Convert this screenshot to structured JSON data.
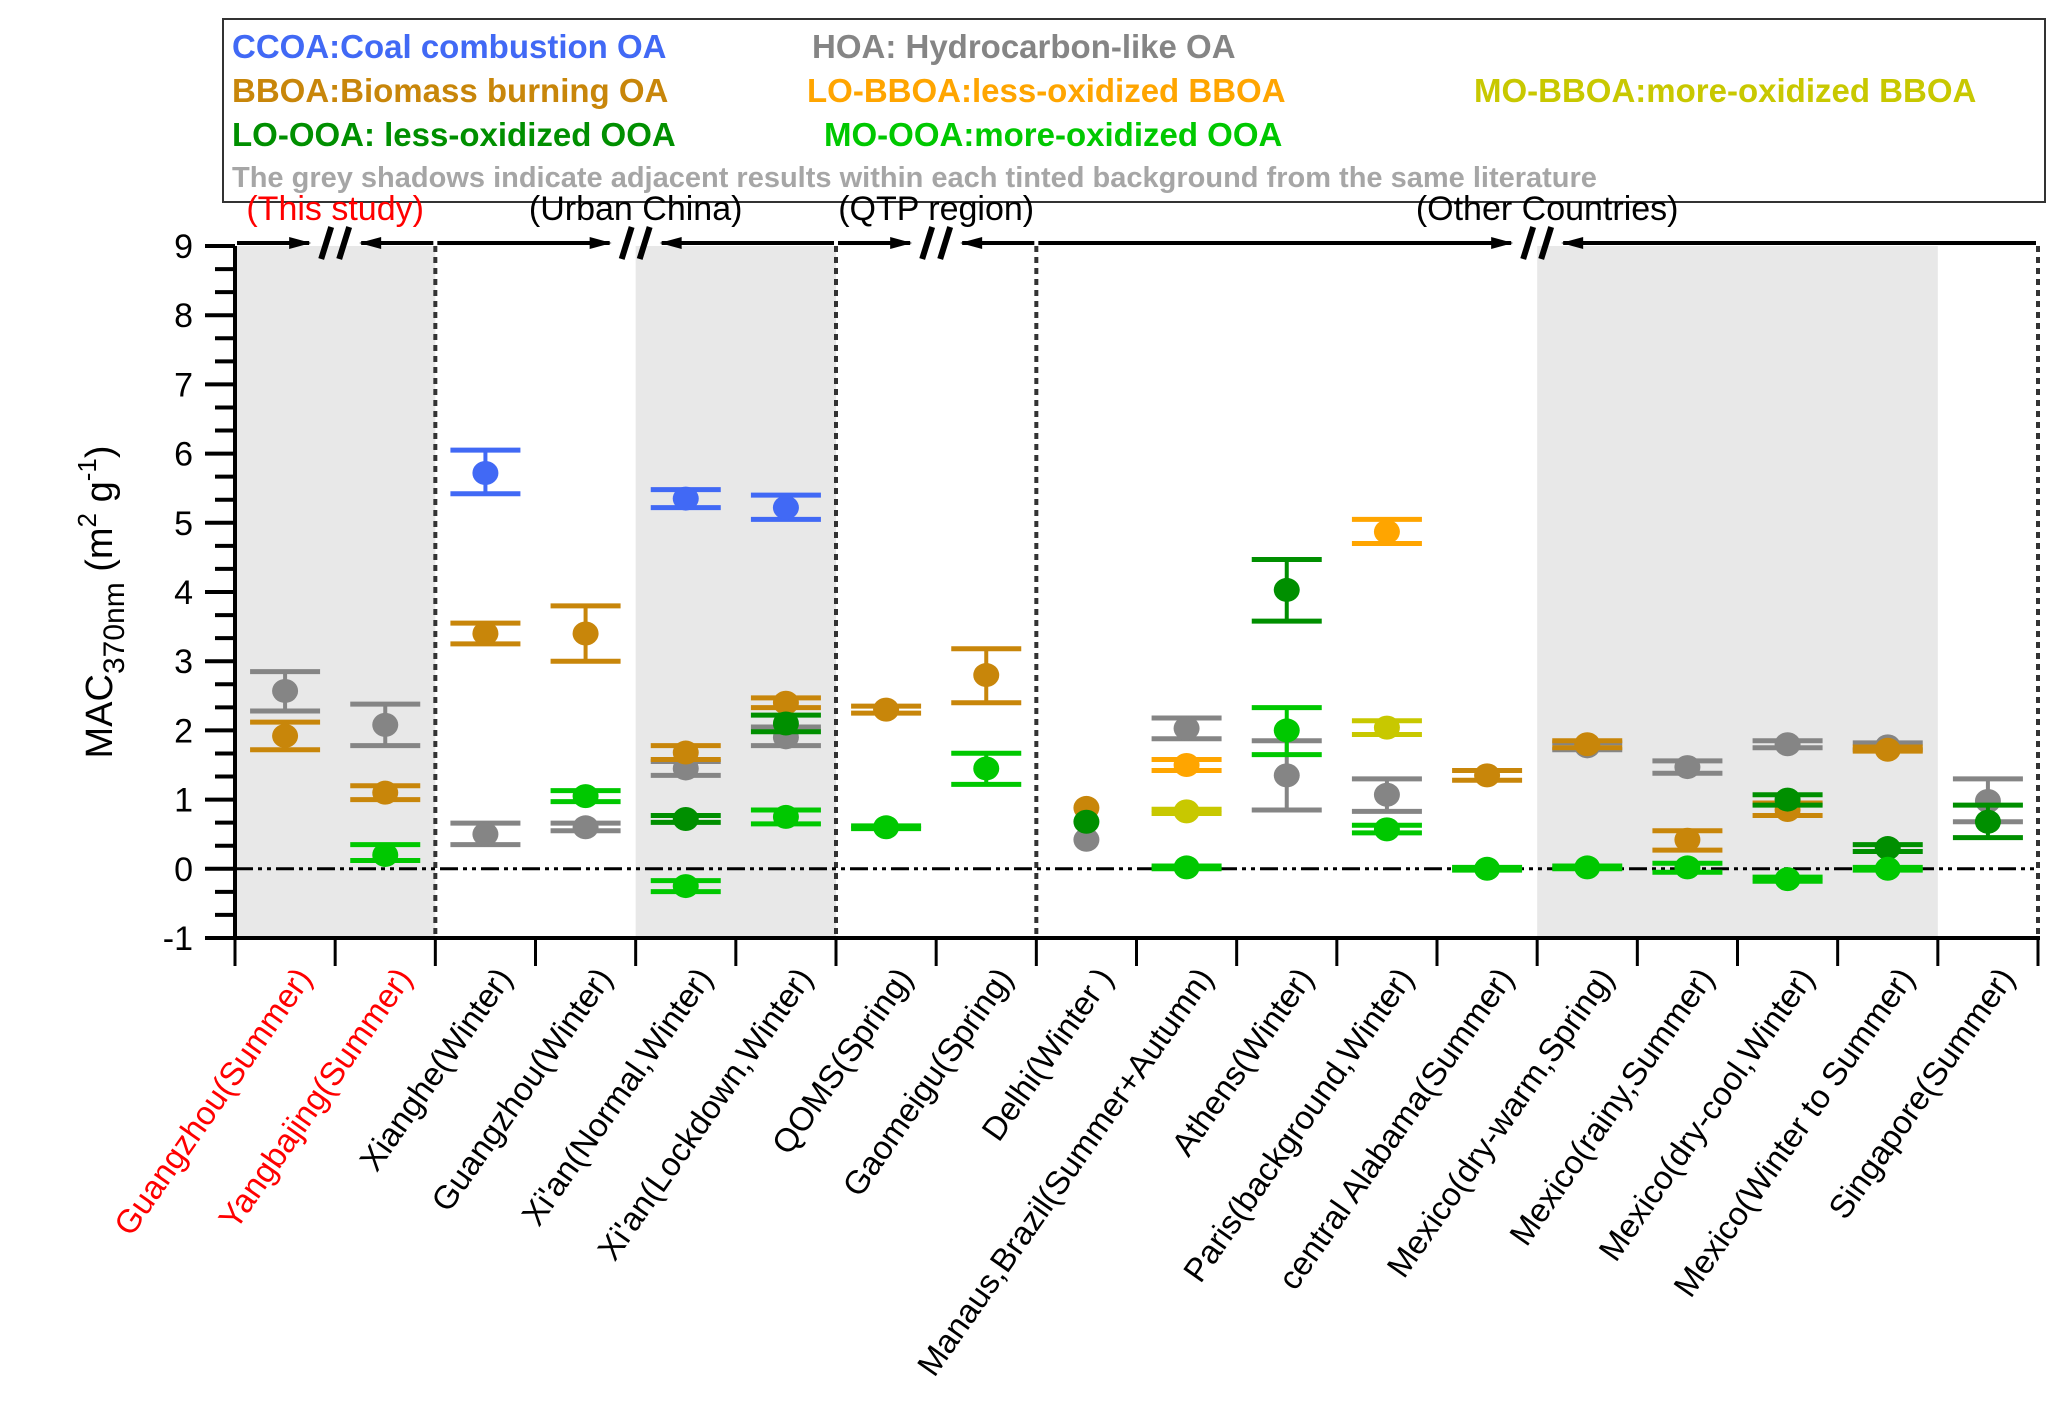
{
  "chart_data": {
    "type": "scatter",
    "title": "",
    "ylabel": "MAC370nm (m2 g-1)",
    "ylabel_parts": {
      "main": "MAC",
      "sub": "370nm",
      "unit_open": " (m",
      "sup1": "2",
      "mid": " g",
      "sup2": "-1",
      "unit_close": ")"
    },
    "ylim": [
      -1,
      9
    ],
    "yticks": [
      -1,
      0,
      1,
      2,
      3,
      4,
      5,
      6,
      7,
      8,
      9
    ],
    "reference_line": 0,
    "categories": [
      "Guangzhou(Summer)",
      "Yangbajing(Summer)",
      "Xianghe(Winter)",
      "Guangzhou(Winter)",
      "Xi'an(Normal,Winter)",
      "Xi'an(Lockdown,Winter)",
      "QOMS(Spring)",
      "Gaomeigu(Spring)",
      "Delhi(Winter )",
      "Manaus,Brazil(Summer+Autumn)",
      "Athens(Winter)",
      "Paris(background,Winter)",
      "central Alabama(Summer)",
      "Mexico(dry-warm,Spring)",
      "Mexico(rainy,Summer)",
      "Mexico(dry-cool,Winter)",
      "Mexico(Winter to Summer)",
      "Singapore(Summer)"
    ],
    "highlight_categories": [
      0,
      1
    ],
    "highlight_color": "#ff0000",
    "groups": [
      {
        "label": "(This study)",
        "color": "#ff0000",
        "from": 0,
        "to": 1,
        "break": true
      },
      {
        "label": "(Urban China)",
        "color": "#000000",
        "from": 2,
        "to": 5,
        "break": true
      },
      {
        "label": "(QTP region)",
        "color": "#000000",
        "from": 6,
        "to": 7,
        "break": true
      },
      {
        "label": "(Other Countries)",
        "color": "#000000",
        "from": 8,
        "to": 17,
        "break": true,
        "break_at": 13
      }
    ],
    "shaded_ranges": [
      [
        0,
        1
      ],
      [
        4,
        5
      ],
      [
        13,
        16
      ]
    ],
    "series": [
      {
        "name": "CCOA",
        "color": "#4169f5",
        "points": [
          {
            "cat": 2,
            "y": 5.72,
            "lo": 5.42,
            "hi": 6.05
          },
          {
            "cat": 4,
            "y": 5.35,
            "lo": 5.22,
            "hi": 5.48
          },
          {
            "cat": 5,
            "y": 5.22,
            "lo": 5.05,
            "hi": 5.4
          }
        ]
      },
      {
        "name": "HOA",
        "color": "#858585",
        "points": [
          {
            "cat": 0,
            "y": 2.57,
            "lo": 2.28,
            "hi": 2.85
          },
          {
            "cat": 1,
            "y": 2.08,
            "lo": 1.78,
            "hi": 2.38
          },
          {
            "cat": 2,
            "y": 0.5,
            "lo": 0.35,
            "hi": 0.66
          },
          {
            "cat": 3,
            "y": 0.6,
            "lo": 0.55,
            "hi": 0.66
          },
          {
            "cat": 4,
            "y": 1.45,
            "lo": 1.35,
            "hi": 1.55
          },
          {
            "cat": 5,
            "y": 1.9,
            "lo": 1.78,
            "hi": 2.05
          },
          {
            "cat": 8,
            "y": 0.42,
            "lo": 0.42,
            "hi": 0.42
          },
          {
            "cat": 9,
            "y": 2.03,
            "lo": 1.88,
            "hi": 2.18
          },
          {
            "cat": 10,
            "y": 1.35,
            "lo": 0.85,
            "hi": 1.85
          },
          {
            "cat": 11,
            "y": 1.07,
            "lo": 0.83,
            "hi": 1.3
          },
          {
            "cat": 13,
            "y": 1.77,
            "lo": 1.72,
            "hi": 1.82
          },
          {
            "cat": 14,
            "y": 1.47,
            "lo": 1.38,
            "hi": 1.56
          },
          {
            "cat": 15,
            "y": 1.8,
            "lo": 1.75,
            "hi": 1.85
          },
          {
            "cat": 16,
            "y": 1.77,
            "lo": 1.72,
            "hi": 1.82
          },
          {
            "cat": 17,
            "y": 0.98,
            "lo": 0.68,
            "hi": 1.3
          }
        ]
      },
      {
        "name": "BBOA",
        "color": "#c8860a",
        "points": [
          {
            "cat": 0,
            "y": 1.92,
            "lo": 1.72,
            "hi": 2.12
          },
          {
            "cat": 1,
            "y": 1.1,
            "lo": 1.0,
            "hi": 1.2
          },
          {
            "cat": 2,
            "y": 3.4,
            "lo": 3.25,
            "hi": 3.55
          },
          {
            "cat": 3,
            "y": 3.4,
            "lo": 3.0,
            "hi": 3.8
          },
          {
            "cat": 4,
            "y": 1.68,
            "lo": 1.58,
            "hi": 1.78
          },
          {
            "cat": 5,
            "y": 2.4,
            "lo": 2.33,
            "hi": 2.47
          },
          {
            "cat": 6,
            "y": 2.3,
            "lo": 2.25,
            "hi": 2.35
          },
          {
            "cat": 7,
            "y": 2.8,
            "lo": 2.4,
            "hi": 3.18
          },
          {
            "cat": 8,
            "y": 0.88,
            "lo": 0.88,
            "hi": 0.88
          },
          {
            "cat": 12,
            "y": 1.35,
            "lo": 1.28,
            "hi": 1.42
          },
          {
            "cat": 13,
            "y": 1.8,
            "lo": 1.75,
            "hi": 1.85
          },
          {
            "cat": 14,
            "y": 0.42,
            "lo": 0.27,
            "hi": 0.55
          },
          {
            "cat": 15,
            "y": 0.85,
            "lo": 0.77,
            "hi": 0.95
          },
          {
            "cat": 16,
            "y": 1.72,
            "lo": 1.7,
            "hi": 1.76
          }
        ]
      },
      {
        "name": "LO-BBOA",
        "color": "#ffa500",
        "points": [
          {
            "cat": 9,
            "y": 1.5,
            "lo": 1.42,
            "hi": 1.58
          },
          {
            "cat": 11,
            "y": 4.87,
            "lo": 4.7,
            "hi": 5.05
          }
        ]
      },
      {
        "name": "MO-BBOA",
        "color": "#c8c800",
        "points": [
          {
            "cat": 9,
            "y": 0.83,
            "lo": 0.8,
            "hi": 0.86
          },
          {
            "cat": 11,
            "y": 2.04,
            "lo": 1.94,
            "hi": 2.14
          }
        ]
      },
      {
        "name": "LO-OOA",
        "color": "#008f00",
        "points": [
          {
            "cat": 4,
            "y": 0.72,
            "lo": 0.67,
            "hi": 0.77
          },
          {
            "cat": 5,
            "y": 2.1,
            "lo": 1.98,
            "hi": 2.22
          },
          {
            "cat": 8,
            "y": 0.68,
            "lo": 0.68,
            "hi": 0.68
          },
          {
            "cat": 10,
            "y": 4.03,
            "lo": 3.58,
            "hi": 4.47
          },
          {
            "cat": 15,
            "y": 1.0,
            "lo": 0.92,
            "hi": 1.07
          },
          {
            "cat": 16,
            "y": 0.3,
            "lo": 0.25,
            "hi": 0.35
          },
          {
            "cat": 17,
            "y": 0.68,
            "lo": 0.45,
            "hi": 0.92
          }
        ]
      },
      {
        "name": "MO-OOA",
        "color": "#00c800",
        "points": [
          {
            "cat": 1,
            "y": 0.2,
            "lo": 0.12,
            "hi": 0.35
          },
          {
            "cat": 3,
            "y": 1.05,
            "lo": 0.97,
            "hi": 1.13
          },
          {
            "cat": 4,
            "y": -0.25,
            "lo": -0.33,
            "hi": -0.17
          },
          {
            "cat": 5,
            "y": 0.75,
            "lo": 0.65,
            "hi": 0.85
          },
          {
            "cat": 6,
            "y": 0.6,
            "lo": 0.58,
            "hi": 0.62
          },
          {
            "cat": 7,
            "y": 1.45,
            "lo": 1.22,
            "hi": 1.67
          },
          {
            "cat": 9,
            "y": 0.02,
            "lo": 0.0,
            "hi": 0.04
          },
          {
            "cat": 10,
            "y": 2.0,
            "lo": 1.65,
            "hi": 2.33
          },
          {
            "cat": 11,
            "y": 0.57,
            "lo": 0.52,
            "hi": 0.63
          },
          {
            "cat": 12,
            "y": 0.0,
            "lo": -0.02,
            "hi": 0.02
          },
          {
            "cat": 13,
            "y": 0.02,
            "lo": 0.0,
            "hi": 0.04
          },
          {
            "cat": 14,
            "y": 0.02,
            "lo": -0.05,
            "hi": 0.08
          },
          {
            "cat": 15,
            "y": -0.15,
            "lo": -0.18,
            "hi": -0.12
          },
          {
            "cat": 16,
            "y": 0.0,
            "lo": -0.02,
            "hi": 0.02
          }
        ]
      }
    ],
    "legend": {
      "placement": "top",
      "rows": [
        [
          {
            "text": "CCOA:Coal combustion OA",
            "color": "#4169f5"
          },
          {
            "text": "HOA: Hydrocarbon-like OA",
            "color": "#858585"
          }
        ],
        [
          {
            "text": "BBOA:Biomass burning OA",
            "color": "#c8860a"
          },
          {
            "text": "LO-BBOA:less-oxidized BBOA",
            "color": "#ffa500"
          },
          {
            "text": "MO-BBOA:more-oxidized BBOA",
            "color": "#c8c800"
          }
        ],
        [
          {
            "text": "LO-OOA: less-oxidized OOA",
            "color": "#008f00"
          },
          {
            "text": "MO-OOA:more-oxidized OOA",
            "color": "#00c800"
          }
        ]
      ],
      "note": {
        "text": "The grey shadows indicate adjacent results within each tinted background from the same literature",
        "color": "#a6a6a6"
      }
    }
  }
}
